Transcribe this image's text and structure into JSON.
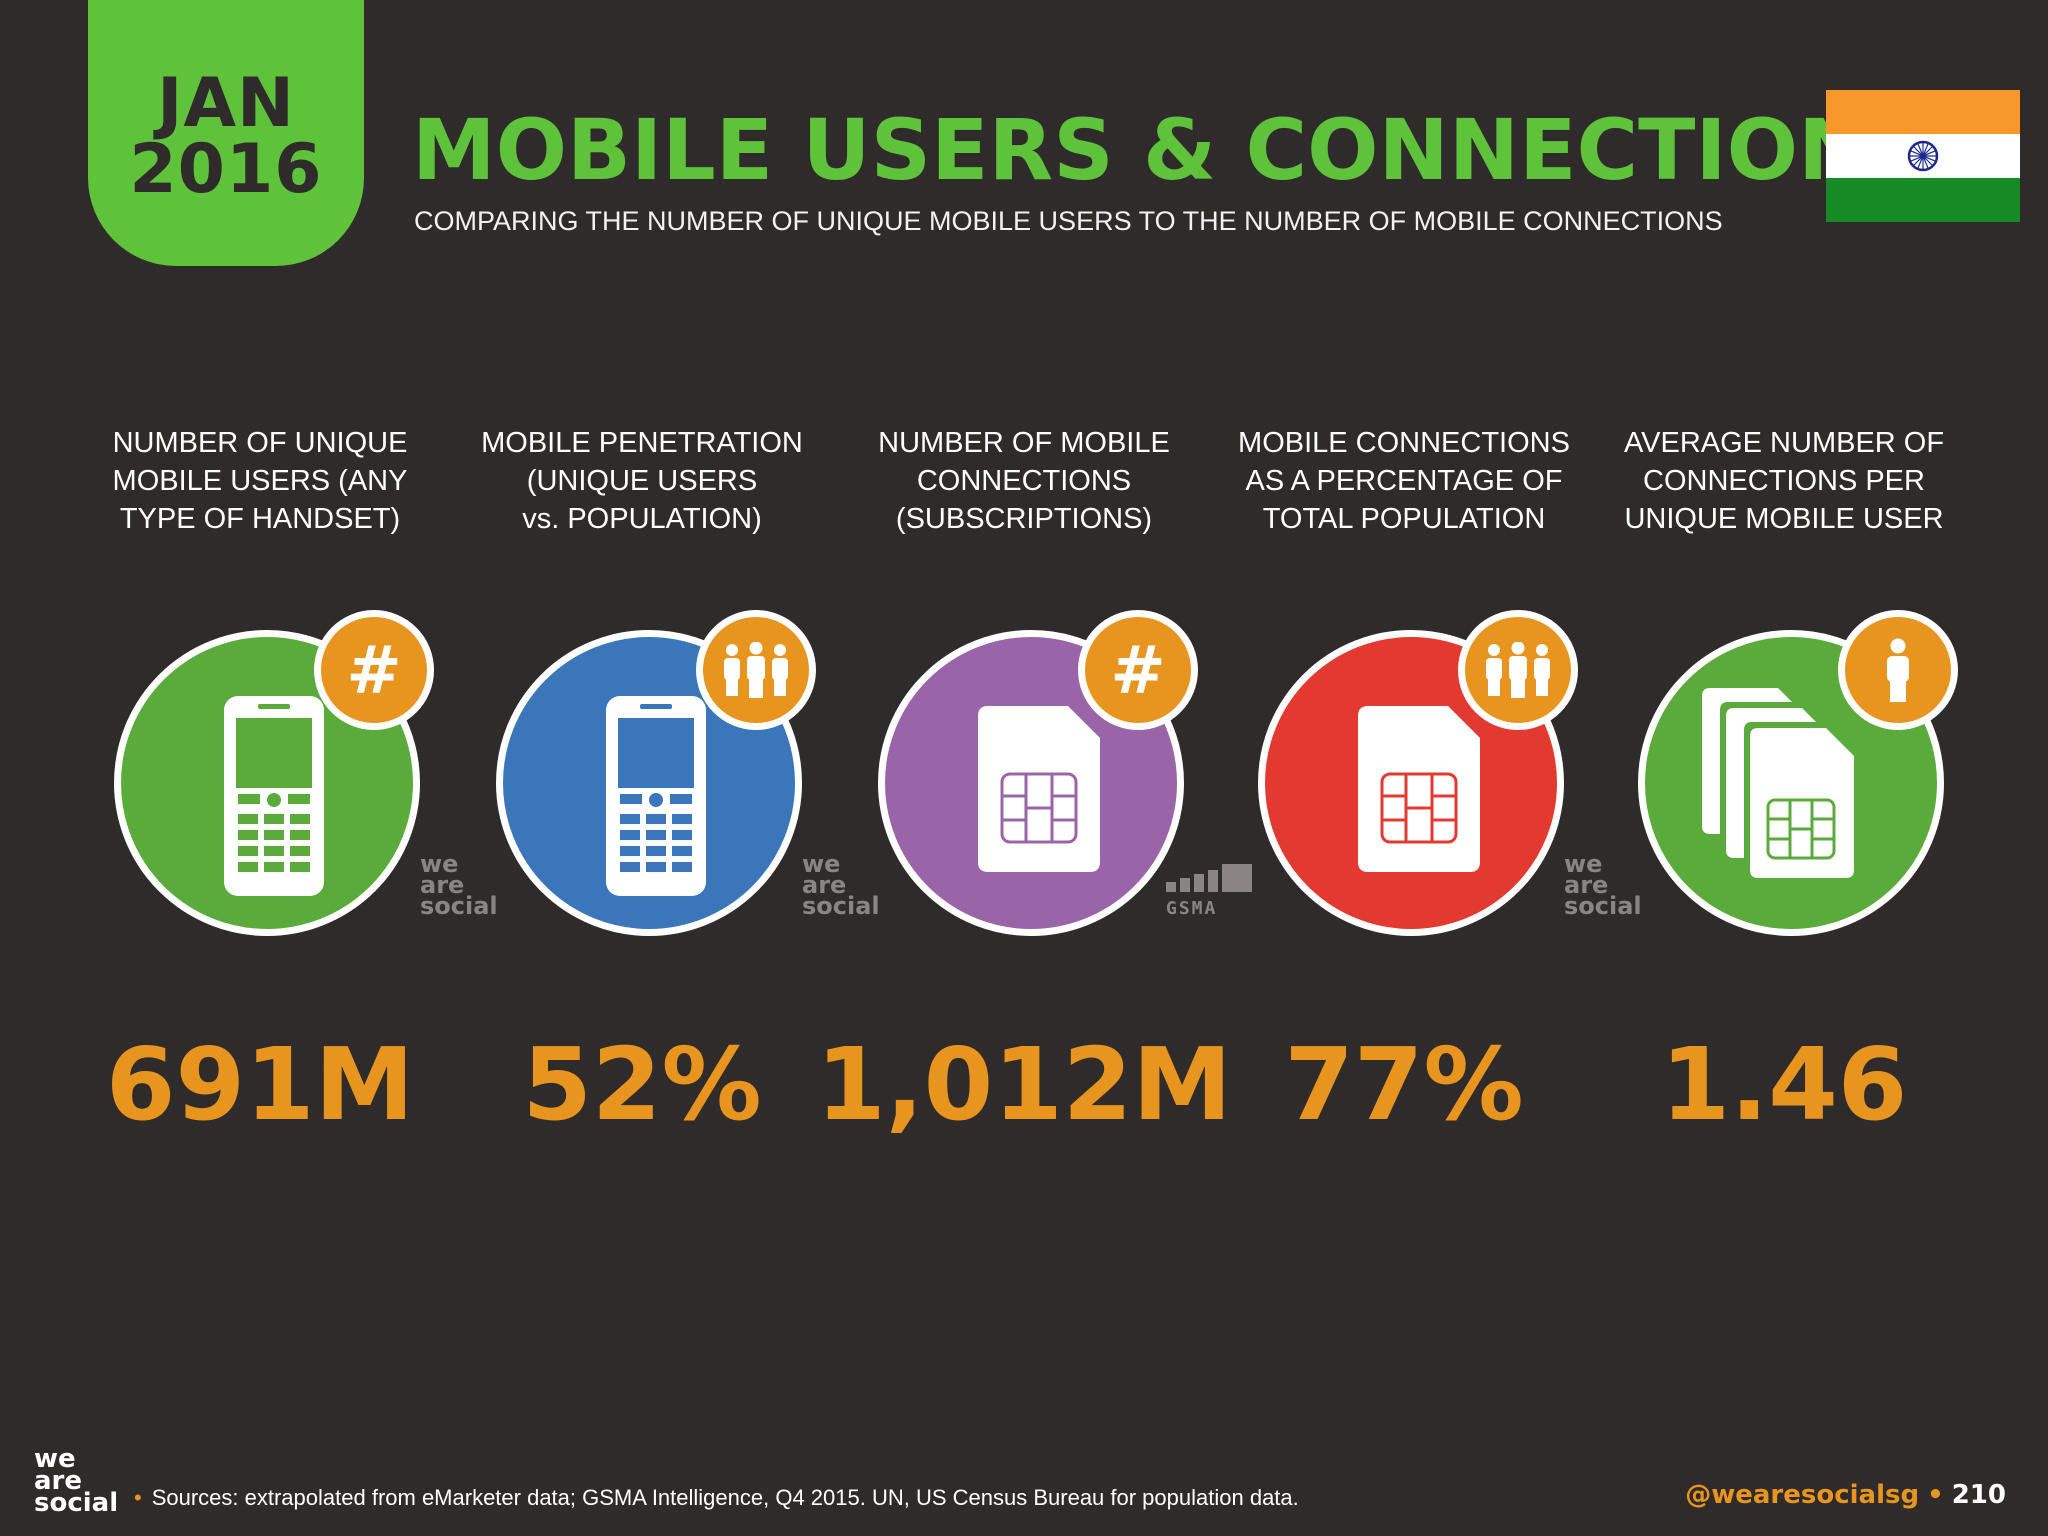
{
  "header": {
    "date_month": "JAN",
    "date_year": "2016",
    "title": "MOBILE USERS & CONNECTIONS",
    "subtitle": "COMPARING THE NUMBER OF UNIQUE MOBILE USERS TO THE NUMBER OF MOBILE CONNECTIONS"
  },
  "flag": {
    "country": "India",
    "colors": [
      "#f7982d",
      "#ffffff",
      "#168a25"
    ]
  },
  "stats": [
    {
      "label_lines": [
        "NUMBER OF UNIQUE",
        "MOBILE USERS (ANY",
        "TYPE OF HANDSET)"
      ],
      "value": "691M",
      "circle_color": "#5aab3c",
      "device": "feature-phone-icon",
      "badge": "#",
      "badge_icon": "hash-icon",
      "source_mark": "we are social"
    },
    {
      "label_lines": [
        "MOBILE PENETRATION",
        "(UNIQUE USERS",
        "vs. POPULATION)"
      ],
      "value": "52%",
      "circle_color": "#3b76bb",
      "device": "feature-phone-icon",
      "badge_icon": "people-group-icon",
      "source_mark": "we are social"
    },
    {
      "label_lines": [
        "NUMBER OF MOBILE",
        "CONNECTIONS",
        "(SUBSCRIPTIONS)"
      ],
      "value": "1,012M",
      "circle_color": "#9a65a8",
      "device": "sim-card-icon",
      "badge": "#",
      "badge_icon": "hash-icon",
      "source_mark": "GSMA"
    },
    {
      "label_lines": [
        "MOBILE CONNECTIONS",
        "AS A PERCENTAGE OF",
        "TOTAL POPULATION"
      ],
      "value": "77%",
      "circle_color": "#e23a31",
      "device": "sim-card-icon",
      "badge_icon": "people-group-icon",
      "source_mark": "we are social"
    },
    {
      "label_lines": [
        "AVERAGE NUMBER OF",
        "CONNECTIONS PER",
        "UNIQUE MOBILE USER"
      ],
      "value": "1.46",
      "circle_color": "#5aab3c",
      "device": "sim-card-stack-icon",
      "badge_icon": "single-person-icon"
    }
  ],
  "watermark": {
    "line1": "we",
    "line2": "are",
    "line3": "social",
    "gsma": "GSMA"
  },
  "footer": {
    "logo_line1": "we",
    "logo_line2": "are",
    "logo_line3": "social",
    "sources": "Sources: extrapolated from eMarketer data; GSMA Intelligence, Q4 2015. UN, US Census Bureau for population data.",
    "handle": "@wearesocialsg",
    "page_number": "210"
  }
}
